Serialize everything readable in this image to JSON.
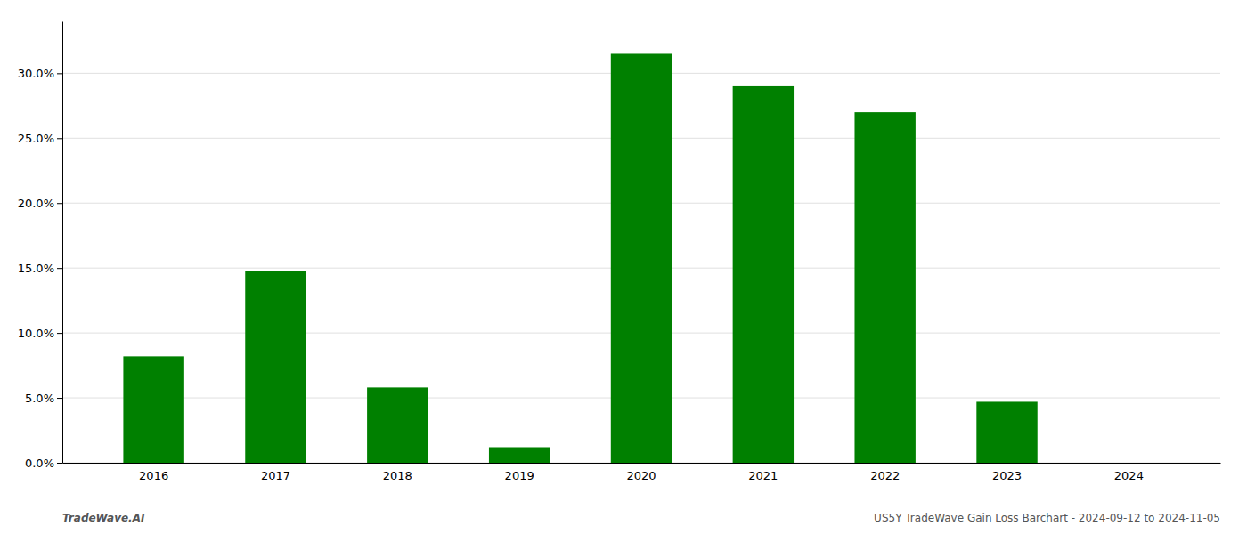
{
  "chart_data": {
    "type": "bar",
    "categories": [
      "2016",
      "2017",
      "2018",
      "2019",
      "2020",
      "2021",
      "2022",
      "2023",
      "2024"
    ],
    "values": [
      8.2,
      14.8,
      5.8,
      1.2,
      31.5,
      29.0,
      27.0,
      4.7,
      0.0
    ],
    "color": "#008000",
    "ylim": [
      0,
      34
    ],
    "yticks": [
      {
        "value": 0.0,
        "label": "0.0%"
      },
      {
        "value": 5.0,
        "label": "5.0%"
      },
      {
        "value": 10.0,
        "label": "10.0%"
      },
      {
        "value": 15.0,
        "label": "15.0%"
      },
      {
        "value": 20.0,
        "label": "20.0%"
      },
      {
        "value": 25.0,
        "label": "25.0%"
      },
      {
        "value": 30.0,
        "label": "30.0%"
      }
    ],
    "grid": true,
    "annotations": [
      "TradeWave.AI",
      "US5Y TradeWave Gain Loss Barchart - 2024-09-12 to 2024-11-05"
    ]
  }
}
